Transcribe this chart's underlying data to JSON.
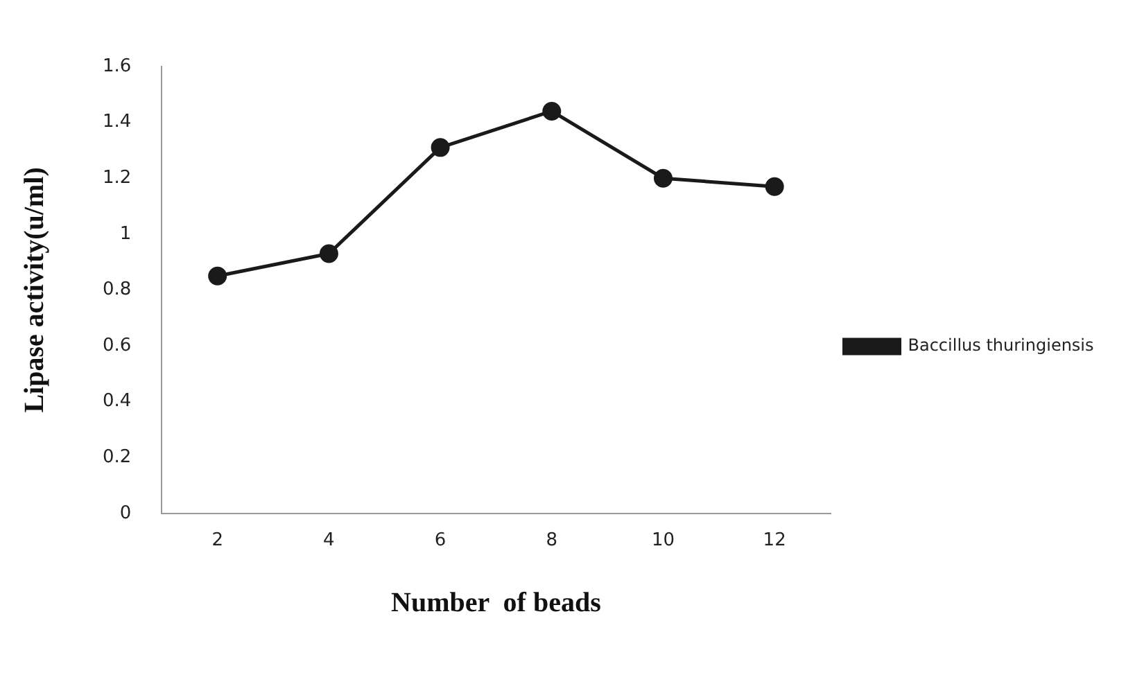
{
  "chart_data": {
    "type": "line",
    "xlabel": "Number  of beads",
    "ylabel": "Lipase activity(u/ml)",
    "categories": [
      "2",
      "4",
      "6",
      "8",
      "10",
      "12"
    ],
    "series": [
      {
        "name": "Baccillus thuringiensis",
        "color": "#1a1a1a",
        "values": [
          0.85,
          0.93,
          1.31,
          1.44,
          1.2,
          1.17
        ]
      }
    ],
    "ylim": [
      0,
      1.6
    ],
    "yticks": [
      0,
      0.2,
      0.4,
      0.6,
      0.8,
      1,
      1.2,
      1.4,
      1.6
    ],
    "grid": false,
    "legend": "right",
    "marker": "circle",
    "line_style": "solid"
  }
}
